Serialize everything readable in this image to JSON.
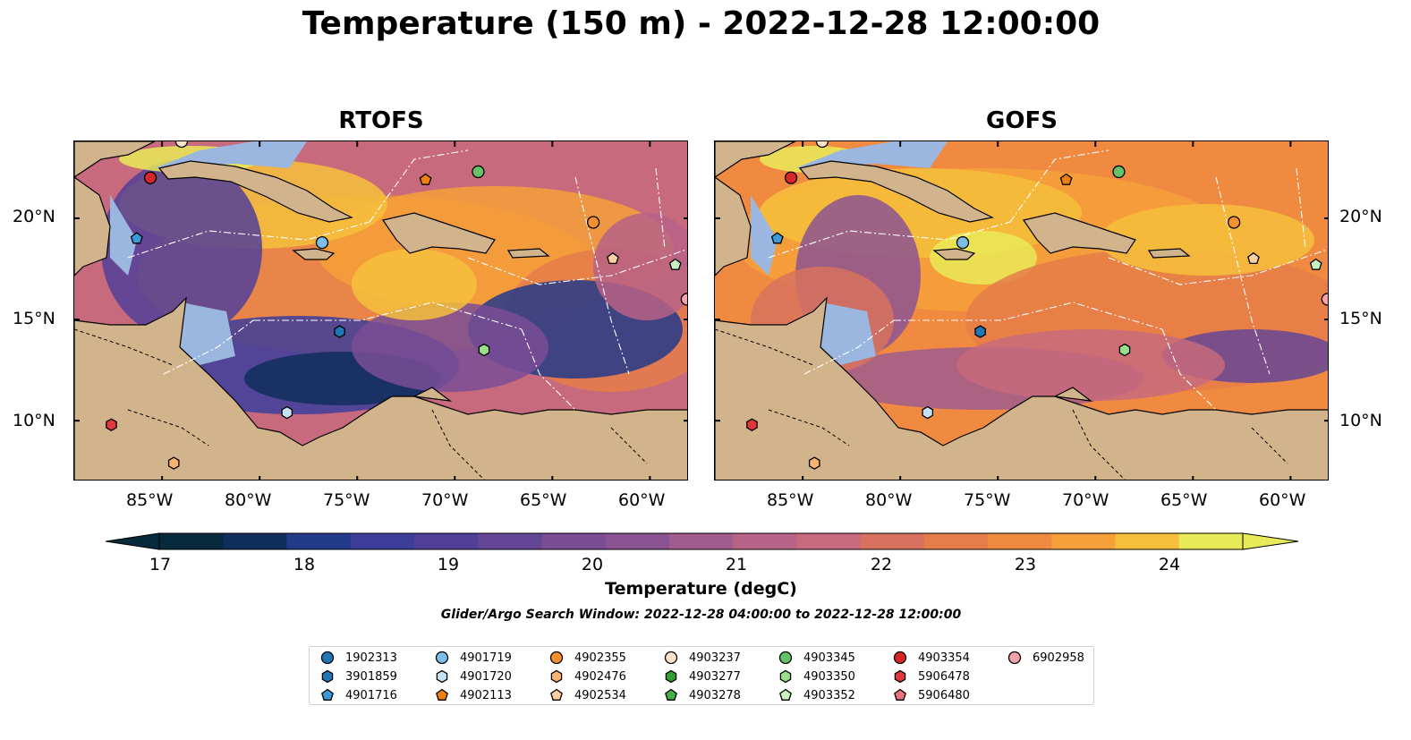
{
  "title": "Temperature (150 m) - 2022-12-28 12:00:00",
  "panels": [
    {
      "title": "RTOFS"
    },
    {
      "title": "GOFS"
    }
  ],
  "lon_labels": [
    "85°W",
    "80°W",
    "75°W",
    "70°W",
    "65°W",
    "60°W"
  ],
  "lat_labels": [
    "20°N",
    "15°N",
    "10°N"
  ],
  "colorbar": {
    "ticks": [
      "17",
      "18",
      "19",
      "20",
      "21",
      "22",
      "23",
      "24"
    ],
    "label": "Temperature (degC)",
    "colors": [
      "#062a3c",
      "#0f2e5c",
      "#233a8a",
      "#3d3d9a",
      "#523f98",
      "#654595",
      "#7a4d95",
      "#8c5393",
      "#a05c8e",
      "#b76287",
      "#c86a7d",
      "#d8725e",
      "#e57d49",
      "#f08a40",
      "#f6a03a",
      "#f6c03c",
      "#e9ea58"
    ]
  },
  "search_window": "Glider/Argo Search Window: 2022-12-28 04:00:00 to 2022-12-28 12:00:00",
  "legend": [
    {
      "label": "1902313",
      "color": "#1f77b4",
      "marker": "circle"
    },
    {
      "label": "3901859",
      "color": "#1f77b4",
      "marker": "hexagon"
    },
    {
      "label": "4901716",
      "color": "#3c9ad8",
      "marker": "pentagon"
    },
    {
      "label": "4901719",
      "color": "#7dbde9",
      "marker": "circle"
    },
    {
      "label": "4901720",
      "color": "#c5e2f4",
      "marker": "hexagon"
    },
    {
      "label": "4902113",
      "color": "#f07f11",
      "marker": "pentagon"
    },
    {
      "label": "4902355",
      "color": "#f5902e",
      "marker": "circle"
    },
    {
      "label": "4902476",
      "color": "#fbb36f",
      "marker": "hexagon"
    },
    {
      "label": "4902534",
      "color": "#fdd0a2",
      "marker": "pentagon"
    },
    {
      "label": "4903237",
      "color": "#fde2c8",
      "marker": "circle"
    },
    {
      "label": "4903277",
      "color": "#2ca02c",
      "marker": "hexagon"
    },
    {
      "label": "4903278",
      "color": "#45b045",
      "marker": "pentagon"
    },
    {
      "label": "4903345",
      "color": "#66c266",
      "marker": "circle"
    },
    {
      "label": "4903350",
      "color": "#98df8a",
      "marker": "hexagon"
    },
    {
      "label": "4903352",
      "color": "#c9f0bf",
      "marker": "pentagon"
    },
    {
      "label": "4903354",
      "color": "#d62728",
      "marker": "circle"
    },
    {
      "label": "5906478",
      "color": "#e0393a",
      "marker": "hexagon"
    },
    {
      "label": "5906480",
      "color": "#e8737a",
      "marker": "pentagon"
    },
    {
      "label": "6902958",
      "color": "#f4a3a8",
      "marker": "circle"
    }
  ],
  "floats": [
    {
      "id": "4903354",
      "lon": -85.6,
      "lat": 22.0
    },
    {
      "id": "4901716",
      "lon": -86.3,
      "lat": 19.0
    },
    {
      "id": "4902113",
      "lon": -71.5,
      "lat": 21.9
    },
    {
      "id": "4903345",
      "lon": -68.8,
      "lat": 22.3
    },
    {
      "id": "4902355",
      "lon": -62.9,
      "lat": 19.8
    },
    {
      "id": "4901719",
      "lon": -76.8,
      "lat": 18.8
    },
    {
      "id": "4902534",
      "lon": -61.9,
      "lat": 18.0
    },
    {
      "id": "4903352",
      "lon": -58.7,
      "lat": 17.7
    },
    {
      "id": "6902958",
      "lon": -58.1,
      "lat": 16.0
    },
    {
      "id": "3901859",
      "lon": -75.9,
      "lat": 14.4
    },
    {
      "id": "4903350",
      "lon": -68.5,
      "lat": 13.5
    },
    {
      "id": "4901720",
      "lon": -78.6,
      "lat": 10.4
    },
    {
      "id": "5906478",
      "lon": -87.6,
      "lat": 9.8
    },
    {
      "id": "4902476",
      "lon": -84.4,
      "lat": 7.9
    },
    {
      "id": "4903237",
      "lon": -84.0,
      "lat": 23.8
    }
  ]
}
